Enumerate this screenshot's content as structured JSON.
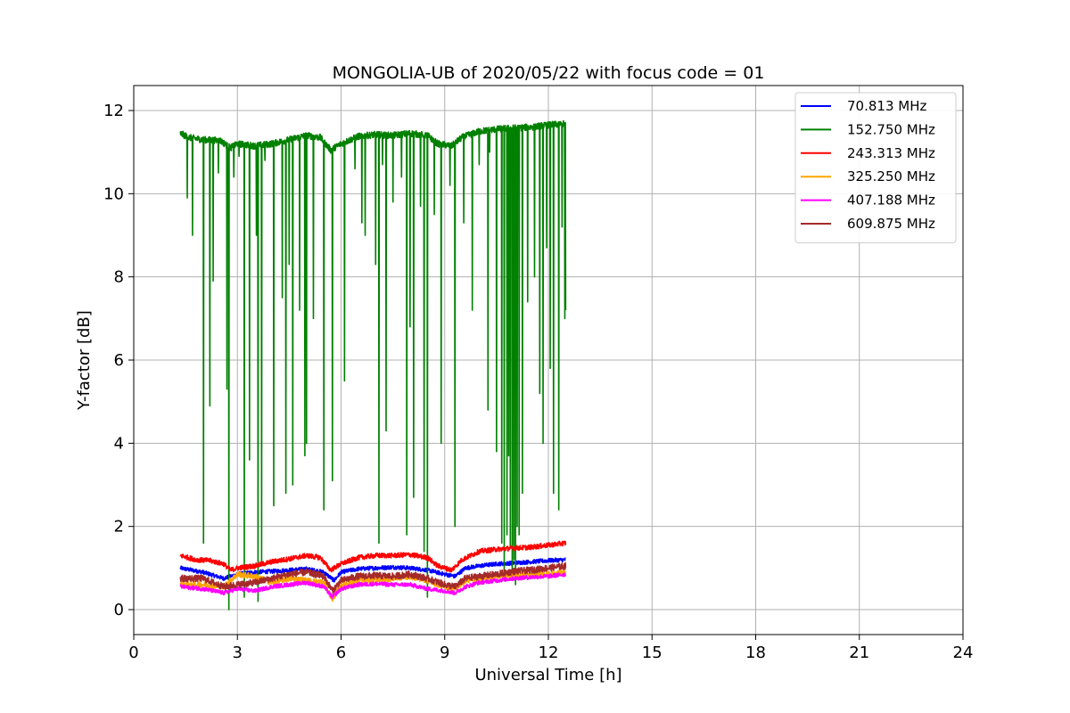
{
  "chart_data": {
    "type": "line",
    "title": "MONGOLIA-UB of 2020/05/22 with focus code = 01",
    "xlabel": "Universal Time [h]",
    "ylabel": "Y-factor [dB]",
    "xlim": [
      0,
      24
    ],
    "ylim": [
      -0.6,
      12.6
    ],
    "xticks": [
      0,
      3,
      6,
      9,
      12,
      15,
      18,
      21,
      24
    ],
    "yticks": [
      0,
      2,
      4,
      6,
      8,
      10,
      12
    ],
    "xtick_labels": [
      "0",
      "3",
      "6",
      "9",
      "12",
      "15",
      "18",
      "21",
      "24"
    ],
    "ytick_labels": [
      "0",
      "2",
      "4",
      "6",
      "8",
      "10",
      "12"
    ],
    "grid": true,
    "legend_position": "top-right",
    "x_range_of_data": [
      1.35,
      12.5
    ],
    "series": [
      {
        "name": " 70.813 MHz",
        "color": "#0000ff",
        "baseline": [
          [
            1.35,
            1.0
          ],
          [
            2.0,
            0.9
          ],
          [
            2.6,
            0.75
          ],
          [
            3.0,
            0.85
          ],
          [
            3.5,
            0.9
          ],
          [
            4.0,
            0.92
          ],
          [
            4.5,
            0.95
          ],
          [
            5.0,
            0.98
          ],
          [
            5.5,
            0.9
          ],
          [
            5.8,
            0.7
          ],
          [
            6.0,
            0.9
          ],
          [
            6.5,
            0.98
          ],
          [
            7.0,
            1.0
          ],
          [
            7.5,
            1.02
          ],
          [
            8.0,
            1.0
          ],
          [
            8.5,
            0.95
          ],
          [
            9.0,
            0.85
          ],
          [
            9.3,
            0.8
          ],
          [
            9.6,
            1.0
          ],
          [
            10.0,
            1.05
          ],
          [
            10.5,
            1.1
          ],
          [
            11.0,
            1.12
          ],
          [
            11.5,
            1.15
          ],
          [
            12.0,
            1.18
          ],
          [
            12.5,
            1.2
          ]
        ],
        "noise": 0.05,
        "spikes": []
      },
      {
        "name": "152.750 MHz",
        "color": "#008000",
        "baseline": [
          [
            1.35,
            11.45
          ],
          [
            1.6,
            11.35
          ],
          [
            2.0,
            11.3
          ],
          [
            2.5,
            11.28
          ],
          [
            2.8,
            11.1
          ],
          [
            3.0,
            11.2
          ],
          [
            3.5,
            11.15
          ],
          [
            4.0,
            11.2
          ],
          [
            4.5,
            11.3
          ],
          [
            5.0,
            11.4
          ],
          [
            5.4,
            11.35
          ],
          [
            5.7,
            11.05
          ],
          [
            6.0,
            11.2
          ],
          [
            6.5,
            11.38
          ],
          [
            7.0,
            11.42
          ],
          [
            7.5,
            11.4
          ],
          [
            8.0,
            11.45
          ],
          [
            8.5,
            11.4
          ],
          [
            8.8,
            11.2
          ],
          [
            9.2,
            11.15
          ],
          [
            9.5,
            11.35
          ],
          [
            10.0,
            11.5
          ],
          [
            10.5,
            11.55
          ],
          [
            11.0,
            11.58
          ],
          [
            11.5,
            11.6
          ],
          [
            12.0,
            11.65
          ],
          [
            12.5,
            11.68
          ]
        ],
        "noise": 0.08,
        "spikes": [
          [
            1.55,
            9.9
          ],
          [
            1.7,
            9.0
          ],
          [
            2.02,
            1.6
          ],
          [
            2.2,
            4.9
          ],
          [
            2.3,
            7.9
          ],
          [
            2.45,
            10.5
          ],
          [
            2.7,
            5.3
          ],
          [
            2.75,
            0.0
          ],
          [
            2.9,
            10.4
          ],
          [
            3.05,
            10.9
          ],
          [
            3.2,
            0.3
          ],
          [
            3.35,
            3.6
          ],
          [
            3.55,
            9.0
          ],
          [
            3.6,
            0.2
          ],
          [
            3.7,
            1.1
          ],
          [
            3.8,
            10.8
          ],
          [
            4.05,
            2.5
          ],
          [
            4.3,
            7.5
          ],
          [
            4.4,
            2.8
          ],
          [
            4.5,
            8.3
          ],
          [
            4.6,
            3.0
          ],
          [
            4.8,
            7.2
          ],
          [
            4.95,
            3.7
          ],
          [
            5.0,
            4.0
          ],
          [
            5.2,
            7.0
          ],
          [
            5.5,
            2.4
          ],
          [
            5.75,
            3.1
          ],
          [
            6.1,
            5.5
          ],
          [
            6.4,
            10.6
          ],
          [
            6.6,
            9.3
          ],
          [
            6.7,
            9.0
          ],
          [
            7.0,
            8.3
          ],
          [
            7.1,
            1.6
          ],
          [
            7.2,
            10.7
          ],
          [
            7.3,
            4.3
          ],
          [
            7.5,
            9.8
          ],
          [
            7.75,
            10.4
          ],
          [
            7.9,
            1.8
          ],
          [
            8.0,
            6.8
          ],
          [
            8.1,
            2.7
          ],
          [
            8.3,
            9.7
          ],
          [
            8.4,
            1.4
          ],
          [
            8.5,
            0.3
          ],
          [
            8.7,
            9.5
          ],
          [
            8.9,
            4.0
          ],
          [
            9.15,
            10.2
          ],
          [
            9.3,
            2.0
          ],
          [
            9.55,
            9.3
          ],
          [
            9.8,
            7.2
          ],
          [
            10.0,
            10.7
          ],
          [
            10.25,
            4.8
          ],
          [
            10.3,
            11.0
          ],
          [
            10.5,
            3.8
          ],
          [
            10.65,
            1.6
          ],
          [
            10.72,
            0.7
          ],
          [
            10.8,
            1.8
          ],
          [
            10.85,
            3.7
          ],
          [
            10.9,
            1.5
          ],
          [
            10.95,
            0.8
          ],
          [
            11.0,
            1.2
          ],
          [
            11.05,
            0.6
          ],
          [
            11.1,
            2.0
          ],
          [
            11.15,
            1.8
          ],
          [
            11.25,
            2.8
          ],
          [
            11.4,
            7.4
          ],
          [
            11.6,
            8.0
          ],
          [
            11.75,
            5.2
          ],
          [
            11.85,
            4.0
          ],
          [
            11.95,
            8.7
          ],
          [
            12.05,
            5.8
          ],
          [
            12.15,
            2.8
          ],
          [
            12.3,
            2.4
          ],
          [
            12.4,
            9.2
          ],
          [
            12.48,
            7.0
          ],
          [
            12.5,
            7.2
          ]
        ]
      },
      {
        "name": "243.313 MHz",
        "color": "#ff0000",
        "baseline": [
          [
            1.35,
            1.3
          ],
          [
            1.8,
            1.2
          ],
          [
            2.2,
            1.18
          ],
          [
            2.6,
            1.1
          ],
          [
            2.8,
            0.95
          ],
          [
            3.0,
            1.0
          ],
          [
            3.5,
            1.05
          ],
          [
            4.0,
            1.15
          ],
          [
            4.5,
            1.22
          ],
          [
            5.0,
            1.3
          ],
          [
            5.4,
            1.25
          ],
          [
            5.7,
            0.95
          ],
          [
            6.0,
            1.1
          ],
          [
            6.5,
            1.25
          ],
          [
            7.0,
            1.3
          ],
          [
            7.5,
            1.3
          ],
          [
            8.0,
            1.32
          ],
          [
            8.5,
            1.25
          ],
          [
            8.8,
            1.05
          ],
          [
            9.2,
            0.95
          ],
          [
            9.5,
            1.2
          ],
          [
            10.0,
            1.4
          ],
          [
            10.5,
            1.45
          ],
          [
            11.0,
            1.48
          ],
          [
            11.5,
            1.5
          ],
          [
            12.0,
            1.55
          ],
          [
            12.5,
            1.6
          ]
        ],
        "noise": 0.06,
        "spikes": []
      },
      {
        "name": "325.250 MHz",
        "color": "#ffa500",
        "baseline": [
          [
            1.35,
            0.6
          ],
          [
            2.0,
            0.6
          ],
          [
            2.6,
            0.55
          ],
          [
            3.0,
            0.85
          ],
          [
            3.5,
            0.8
          ],
          [
            4.0,
            0.65
          ],
          [
            4.5,
            0.75
          ],
          [
            5.0,
            0.7
          ],
          [
            5.5,
            0.65
          ],
          [
            5.75,
            0.25
          ],
          [
            6.0,
            0.6
          ],
          [
            6.5,
            0.7
          ],
          [
            7.0,
            0.72
          ],
          [
            7.5,
            0.75
          ],
          [
            8.0,
            0.8
          ],
          [
            8.5,
            0.7
          ],
          [
            9.0,
            0.55
          ],
          [
            9.3,
            0.5
          ],
          [
            9.6,
            0.7
          ],
          [
            10.0,
            0.75
          ],
          [
            10.5,
            0.8
          ],
          [
            11.0,
            0.82
          ],
          [
            11.5,
            0.85
          ],
          [
            12.0,
            0.85
          ],
          [
            12.5,
            0.9
          ]
        ],
        "noise": 0.07,
        "spikes": []
      },
      {
        "name": "407.188 MHz",
        "color": "#ff00ff",
        "baseline": [
          [
            1.35,
            0.55
          ],
          [
            2.0,
            0.5
          ],
          [
            2.6,
            0.4
          ],
          [
            3.0,
            0.5
          ],
          [
            3.5,
            0.45
          ],
          [
            4.0,
            0.55
          ],
          [
            4.5,
            0.6
          ],
          [
            5.0,
            0.65
          ],
          [
            5.5,
            0.55
          ],
          [
            5.75,
            0.3
          ],
          [
            6.0,
            0.5
          ],
          [
            6.5,
            0.6
          ],
          [
            7.0,
            0.62
          ],
          [
            7.5,
            0.6
          ],
          [
            8.0,
            0.6
          ],
          [
            8.5,
            0.5
          ],
          [
            9.0,
            0.45
          ],
          [
            9.3,
            0.4
          ],
          [
            9.6,
            0.55
          ],
          [
            10.0,
            0.65
          ],
          [
            10.5,
            0.7
          ],
          [
            11.0,
            0.75
          ],
          [
            11.5,
            0.78
          ],
          [
            12.0,
            0.8
          ],
          [
            12.5,
            0.85
          ]
        ],
        "noise": 0.05,
        "spikes": []
      },
      {
        "name": "609.875 MHz",
        "color": "#a52a2a",
        "baseline": [
          [
            1.35,
            0.75
          ],
          [
            2.0,
            0.75
          ],
          [
            2.6,
            0.55
          ],
          [
            3.0,
            0.6
          ],
          [
            3.5,
            0.65
          ],
          [
            4.0,
            0.75
          ],
          [
            4.5,
            0.85
          ],
          [
            5.0,
            0.9
          ],
          [
            5.5,
            0.8
          ],
          [
            5.75,
            0.45
          ],
          [
            6.0,
            0.7
          ],
          [
            6.5,
            0.8
          ],
          [
            7.0,
            0.82
          ],
          [
            7.5,
            0.8
          ],
          [
            8.0,
            0.85
          ],
          [
            8.5,
            0.75
          ],
          [
            9.0,
            0.6
          ],
          [
            9.3,
            0.55
          ],
          [
            9.6,
            0.75
          ],
          [
            10.0,
            0.8
          ],
          [
            10.5,
            0.85
          ],
          [
            11.0,
            0.92
          ],
          [
            11.5,
            0.95
          ],
          [
            12.0,
            1.0
          ],
          [
            12.5,
            1.05
          ]
        ],
        "noise": 0.08,
        "spikes": []
      }
    ]
  }
}
